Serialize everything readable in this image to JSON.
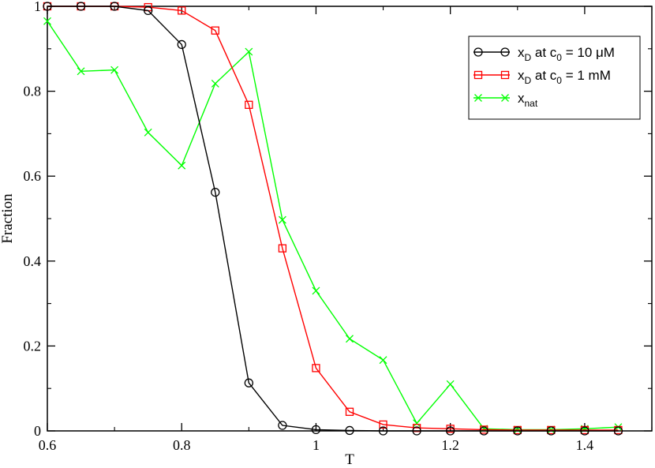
{
  "chart_data": {
    "type": "line",
    "xlabel": "T",
    "ylabel": "Fraction",
    "xlim": [
      0.6,
      1.5
    ],
    "ylim": [
      0,
      1
    ],
    "xticks": [
      0.6,
      0.8,
      1.0,
      1.2,
      1.4
    ],
    "xtick_labels": [
      "0.6",
      "0.8",
      "1",
      "1.2",
      "1.4"
    ],
    "yticks": [
      0,
      0.2,
      0.4,
      0.6,
      0.8,
      1.0
    ],
    "ytick_labels": [
      "0",
      "0.2",
      "0.4",
      "0.6",
      "0.8",
      "1"
    ],
    "grid": false,
    "legend_position": "top-right",
    "x": [
      0.6,
      0.65,
      0.7,
      0.75,
      0.8,
      0.85,
      0.9,
      0.95,
      1.0,
      1.05,
      1.1,
      1.15,
      1.2,
      1.25,
      1.3,
      1.35,
      1.4,
      1.45
    ],
    "series": [
      {
        "legend": {
          "main": "x",
          "sub": "D",
          "mid": " at c",
          "sub2": "0",
          "tail": " = 10 μM"
        },
        "color": "#000000",
        "marker": "circle",
        "values": [
          1.0,
          1.0,
          1.0,
          0.99,
          0.91,
          0.562,
          0.113,
          0.013,
          0.003,
          0.001,
          0.0,
          0.0,
          0.0,
          0.0,
          0.0,
          0.0,
          0.0,
          0.0
        ]
      },
      {
        "legend": {
          "main": "x",
          "sub": "D",
          "mid": " at c",
          "sub2": "0",
          "tail": " = 1 mM"
        },
        "color": "#ff0000",
        "marker": "square",
        "values": [
          1.0,
          1.0,
          1.0,
          0.998,
          0.99,
          0.943,
          0.768,
          0.43,
          0.148,
          0.045,
          0.015,
          0.007,
          0.005,
          0.003,
          0.002,
          0.002,
          0.002,
          0.002
        ]
      },
      {
        "legend": {
          "main": "x",
          "sub": "nat",
          "mid": "",
          "sub2": "",
          "tail": ""
        },
        "color": "#00ff00",
        "marker": "cross",
        "values": [
          0.965,
          0.847,
          0.85,
          0.703,
          0.625,
          0.818,
          0.893,
          0.497,
          0.33,
          0.217,
          0.167,
          0.018,
          0.11,
          0.005,
          0.003,
          0.003,
          0.005,
          0.009
        ]
      }
    ]
  }
}
